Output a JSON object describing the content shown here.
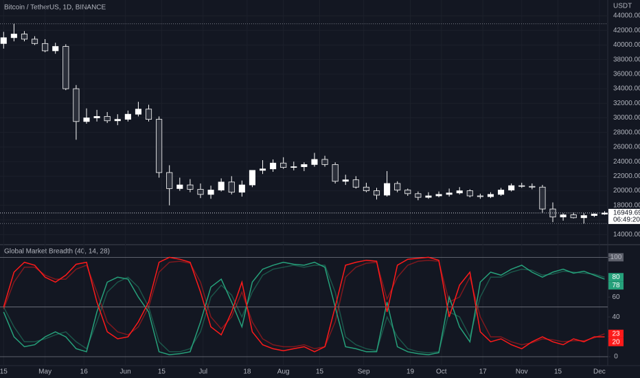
{
  "chart_data": [
    {
      "type": "candlestick",
      "title": "Bitcoin / TetherUS, 1D, BINANCE",
      "axis_unit": "USDT",
      "last_price": 16949.69,
      "countdown": "06:49:20",
      "xlim": [
        -0.35,
        58.3
      ],
      "xticks": [
        {
          "value": 0,
          "label": "15"
        },
        {
          "value": 4,
          "label": "May"
        },
        {
          "value": 7.75,
          "label": "16"
        },
        {
          "value": 11.75,
          "label": "Jun"
        },
        {
          "value": 15.25,
          "label": "15"
        },
        {
          "value": 19.25,
          "label": "Jul"
        },
        {
          "value": 23.5,
          "label": "18"
        },
        {
          "value": 27,
          "label": "Aug"
        },
        {
          "value": 30.5,
          "label": "15"
        },
        {
          "value": 34.75,
          "label": "Sep"
        },
        {
          "value": 39.25,
          "label": "19"
        },
        {
          "value": 42.25,
          "label": "Oct"
        },
        {
          "value": 46.25,
          "label": "17"
        },
        {
          "value": 50,
          "label": "Nov"
        },
        {
          "value": 53.5,
          "label": "15"
        },
        {
          "value": 57.5,
          "label": "Dec"
        }
      ],
      "ylim": [
        12700,
        46170
      ],
      "yticks": [
        {
          "value": 14000,
          "label": "14000.00"
        },
        {
          "value": 16000,
          "label": "16000.00"
        },
        {
          "value": 18000,
          "label": "18000.00"
        },
        {
          "value": 20000,
          "label": "20000.00"
        },
        {
          "value": 22000,
          "label": "22000.00"
        },
        {
          "value": 24000,
          "label": "24000.00"
        },
        {
          "value": 26000,
          "label": "26000.00"
        },
        {
          "value": 28000,
          "label": "28000.00"
        },
        {
          "value": 30000,
          "label": "30000.00"
        },
        {
          "value": 32000,
          "label": "32000.00"
        },
        {
          "value": 34000,
          "label": "34000.00"
        },
        {
          "value": 36000,
          "label": "36000.00"
        },
        {
          "value": 38000,
          "label": "38000.00"
        },
        {
          "value": 40000,
          "label": "40000.00"
        },
        {
          "value": 42000,
          "label": "42000.00"
        },
        {
          "value": 44000,
          "label": "44000.00"
        }
      ],
      "up_color": "#ffffff",
      "down_color": "#2a2e39",
      "opens": [
        40200,
        41000,
        41500,
        40800,
        40200,
        39200,
        39800,
        34000,
        29500,
        30000,
        30200,
        29600,
        29800,
        30500,
        31200,
        29800,
        22500,
        20300,
        20800,
        20200,
        19500,
        20100,
        21200,
        19800,
        20800,
        22800,
        23000,
        23800,
        23200,
        23300,
        23600,
        24300,
        23600,
        21300,
        21500,
        20500,
        20000,
        19400,
        21000,
        20100,
        19600,
        19100,
        19300,
        19500,
        19700,
        20000,
        19300,
        19200,
        19500,
        20100,
        20700,
        20600,
        20500,
        17500,
        16400,
        16700,
        16300,
        16600,
        16800
      ],
      "highs": [
        41800,
        42900,
        41900,
        41200,
        40800,
        40300,
        40100,
        34500,
        31300,
        31100,
        30800,
        30500,
        31000,
        32200,
        31800,
        30200,
        23500,
        21800,
        21600,
        21000,
        20700,
        21700,
        22000,
        21400,
        22400,
        24200,
        24300,
        24600,
        24000,
        23900,
        25200,
        24800,
        23900,
        22200,
        22000,
        21100,
        20400,
        22700,
        21300,
        20300,
        19900,
        19800,
        19900,
        20300,
        20500,
        20200,
        19600,
        19800,
        20400,
        21000,
        21100,
        21000,
        20800,
        18400,
        16900,
        17000,
        16900,
        16900,
        17200
      ],
      "lows": [
        39500,
        40500,
        40500,
        40000,
        39000,
        38800,
        33800,
        27000,
        29200,
        29500,
        29300,
        29000,
        29500,
        30200,
        29500,
        21800,
        18000,
        20000,
        19800,
        19000,
        18900,
        19900,
        19500,
        19200,
        20500,
        22300,
        22600,
        23000,
        22800,
        22700,
        23300,
        23300,
        21000,
        20800,
        20300,
        19800,
        18800,
        19200,
        19800,
        19300,
        18700,
        18900,
        19100,
        19200,
        19500,
        19100,
        18900,
        19000,
        19300,
        19900,
        20400,
        20200,
        17000,
        15700,
        15900,
        16200,
        15500,
        16400,
        16700
      ],
      "closes": [
        41000,
        41500,
        40800,
        40200,
        39200,
        39800,
        34000,
        29500,
        30000,
        30200,
        29600,
        29800,
        30500,
        31200,
        29800,
        22500,
        20300,
        20800,
        20200,
        19500,
        20100,
        21200,
        19800,
        20800,
        22800,
        23000,
        23800,
        23200,
        23300,
        23600,
        24300,
        23600,
        21300,
        21500,
        20500,
        20000,
        19400,
        21000,
        20100,
        19600,
        19100,
        19300,
        19500,
        19700,
        20000,
        19300,
        19200,
        19500,
        20100,
        20700,
        20600,
        20500,
        17500,
        16400,
        16700,
        16300,
        16600,
        16800,
        16950
      ]
    },
    {
      "type": "line",
      "title": "Global Market Breadth (40, 14, 28)",
      "xlim": [
        -0.35,
        58.3
      ],
      "ylim": [
        -9,
        112
      ],
      "yticks": [
        0,
        20,
        40,
        60,
        100
      ],
      "levels": [
        0,
        50,
        100
      ],
      "series": [
        {
          "color": "#26a17b",
          "opacity": 0.45,
          "values": [
            50,
            30,
            15,
            15,
            18,
            22,
            25,
            15,
            8,
            35,
            65,
            75,
            80,
            70,
            50,
            15,
            5,
            5,
            8,
            25,
            60,
            72,
            62,
            40,
            65,
            82,
            88,
            90,
            92,
            90,
            92,
            92,
            65,
            20,
            12,
            8,
            6,
            40,
            20,
            8,
            5,
            4,
            5,
            45,
            40,
            20,
            60,
            80,
            80,
            85,
            88,
            87,
            82,
            83,
            86,
            85,
            84,
            83,
            80
          ]
        },
        {
          "color": "#ff1a1a",
          "opacity": 0.45,
          "values": [
            48,
            75,
            90,
            90,
            82,
            78,
            78,
            88,
            92,
            65,
            35,
            25,
            22,
            30,
            50,
            85,
            95,
            96,
            94,
            75,
            40,
            28,
            40,
            65,
            35,
            18,
            12,
            10,
            10,
            12,
            8,
            10,
            35,
            80,
            90,
            94,
            95,
            58,
            80,
            92,
            96,
            97,
            96,
            55,
            60,
            80,
            40,
            20,
            20,
            15,
            12,
            14,
            18,
            17,
            15,
            16,
            16,
            19,
            23
          ]
        },
        {
          "color": "#26a17b",
          "opacity": 1,
          "values": [
            45,
            20,
            10,
            12,
            20,
            25,
            20,
            8,
            5,
            45,
            75,
            80,
            78,
            60,
            45,
            5,
            2,
            3,
            5,
            35,
            70,
            78,
            55,
            30,
            75,
            88,
            92,
            95,
            93,
            92,
            95,
            90,
            50,
            10,
            8,
            5,
            5,
            55,
            10,
            5,
            3,
            2,
            4,
            60,
            30,
            15,
            75,
            85,
            82,
            88,
            92,
            85,
            80,
            85,
            88,
            84,
            86,
            82,
            78
          ]
        },
        {
          "color": "#ff1a1a",
          "opacity": 1,
          "values": [
            50,
            85,
            95,
            92,
            80,
            75,
            82,
            93,
            95,
            55,
            25,
            18,
            20,
            35,
            55,
            95,
            100,
            98,
            95,
            65,
            30,
            22,
            45,
            75,
            25,
            12,
            8,
            6,
            8,
            10,
            5,
            10,
            50,
            92,
            95,
            97,
            96,
            45,
            92,
            98,
            99,
            100,
            97,
            40,
            72,
            85,
            25,
            15,
            18,
            12,
            8,
            15,
            20,
            15,
            12,
            18,
            15,
            20,
            20
          ]
        }
      ]
    }
  ]
}
